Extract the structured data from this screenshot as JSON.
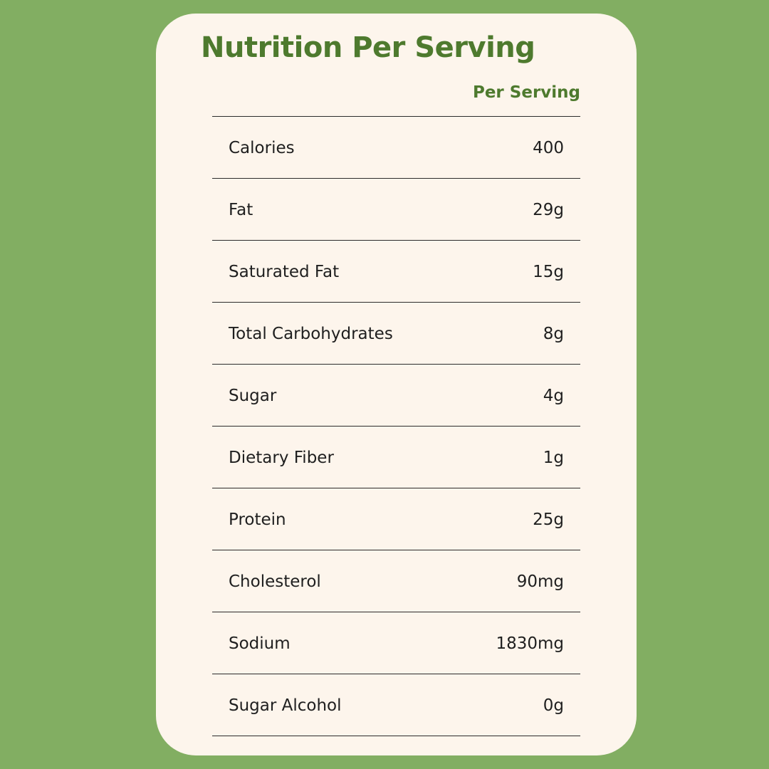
{
  "title": "Nutrition Per Serving",
  "column_header": "Per Serving",
  "colors": {
    "background": "#82ae62",
    "card": "#fdf5ec",
    "accent": "#4e7a2e",
    "text": "#1f1f1f"
  },
  "rows": [
    {
      "label": "Calories",
      "value": "400"
    },
    {
      "label": "Fat",
      "value": "29g"
    },
    {
      "label": "Saturated Fat",
      "value": "15g"
    },
    {
      "label": "Total Carbohydrates",
      "value": "8g"
    },
    {
      "label": "Sugar",
      "value": "4g"
    },
    {
      "label": "Dietary Fiber",
      "value": "1g"
    },
    {
      "label": "Protein",
      "value": "25g"
    },
    {
      "label": "Cholesterol",
      "value": "90mg"
    },
    {
      "label": "Sodium",
      "value": "1830mg"
    },
    {
      "label": "Sugar Alcohol",
      "value": "0g"
    }
  ]
}
